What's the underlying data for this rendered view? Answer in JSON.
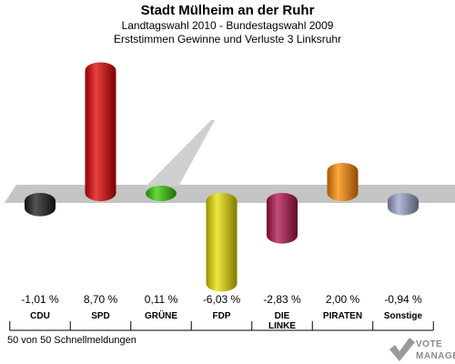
{
  "header": {
    "title": "Stadt Mülheim an der Ruhr",
    "subtitle1": "Landtagswahl 2010 - Bundestagswahl 2009",
    "subtitle2": "Erststimmen Gewinne und Verluste 3 Linksruhr"
  },
  "footer": {
    "note": "50 von 50 Schnellmeldungen"
  },
  "logo": {
    "line1": "VOTE",
    "line2": "MANAGER"
  },
  "chart_data": {
    "type": "bar",
    "title": "Stadt Mülheim an der Ruhr",
    "categories": [
      "CDU",
      "SPD",
      "GRÜNE",
      "FDP",
      "DIE LINKE",
      "PIRATEN",
      "Sonstige"
    ],
    "category_lines": [
      [
        "CDU"
      ],
      [
        "SPD"
      ],
      [
        "GRÜNE"
      ],
      [
        "FDP"
      ],
      [
        "DIE",
        "LINKE"
      ],
      [
        "PIRATEN"
      ],
      [
        "Sonstige"
      ]
    ],
    "values": [
      -1.01,
      8.7,
      0.11,
      -6.03,
      -2.83,
      2.0,
      -0.94
    ],
    "value_labels": [
      "-1,01 %",
      "8,70 %",
      "0,11 %",
      "-6,03 %",
      "-2,83 %",
      "2,00 %",
      "-0,94 %"
    ],
    "colors": [
      "#1a1a1a",
      "#e00000",
      "#33cc00",
      "#e8e000",
      "#b0104a",
      "#ff8800",
      "#98a4cc"
    ],
    "xlabel": "",
    "ylabel": "",
    "grid": false
  }
}
